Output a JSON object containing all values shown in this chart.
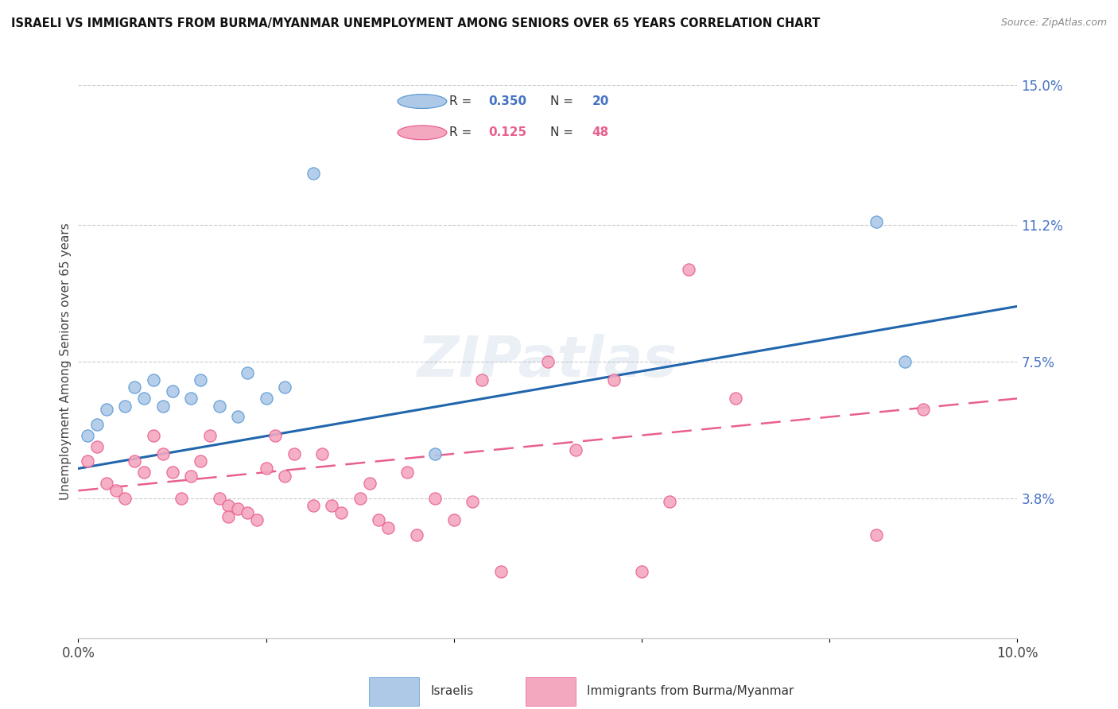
{
  "title": "ISRAELI VS IMMIGRANTS FROM BURMA/MYANMAR UNEMPLOYMENT AMONG SENIORS OVER 65 YEARS CORRELATION CHART",
  "source": "Source: ZipAtlas.com",
  "ylabel": "Unemployment Among Seniors over 65 years",
  "xlim": [
    0.0,
    0.1
  ],
  "ylim": [
    0.0,
    0.15
  ],
  "ytick_right_vals": [
    0.038,
    0.075,
    0.112,
    0.15
  ],
  "ytick_right_labels": [
    "3.8%",
    "7.5%",
    "11.2%",
    "15.0%"
  ],
  "blue_color": "#aec9e8",
  "pink_color": "#f4a8bf",
  "blue_edge_color": "#5b9bd5",
  "pink_edge_color": "#e96090",
  "blue_line_color": "#2166ac",
  "pink_line_color": "#e96090",
  "watermark": "ZIPatlas",
  "israelis_x": [
    0.001,
    0.002,
    0.003,
    0.005,
    0.006,
    0.007,
    0.008,
    0.009,
    0.01,
    0.012,
    0.013,
    0.015,
    0.017,
    0.018,
    0.02,
    0.022,
    0.025,
    0.038,
    0.085,
    0.088
  ],
  "israelis_y": [
    0.055,
    0.058,
    0.062,
    0.063,
    0.068,
    0.065,
    0.07,
    0.063,
    0.067,
    0.065,
    0.07,
    0.063,
    0.06,
    0.072,
    0.065,
    0.068,
    0.126,
    0.05,
    0.113,
    0.075
  ],
  "burma_x": [
    0.001,
    0.002,
    0.003,
    0.004,
    0.005,
    0.006,
    0.007,
    0.008,
    0.009,
    0.01,
    0.011,
    0.012,
    0.013,
    0.014,
    0.015,
    0.016,
    0.016,
    0.017,
    0.018,
    0.019,
    0.02,
    0.021,
    0.022,
    0.023,
    0.025,
    0.026,
    0.027,
    0.028,
    0.03,
    0.031,
    0.032,
    0.033,
    0.035,
    0.036,
    0.038,
    0.04,
    0.042,
    0.043,
    0.045,
    0.05,
    0.053,
    0.057,
    0.06,
    0.063,
    0.065,
    0.07,
    0.085,
    0.09
  ],
  "burma_y": [
    0.048,
    0.052,
    0.042,
    0.04,
    0.038,
    0.048,
    0.045,
    0.055,
    0.05,
    0.045,
    0.038,
    0.044,
    0.048,
    0.055,
    0.038,
    0.036,
    0.033,
    0.035,
    0.034,
    0.032,
    0.046,
    0.055,
    0.044,
    0.05,
    0.036,
    0.05,
    0.036,
    0.034,
    0.038,
    0.042,
    0.032,
    0.03,
    0.045,
    0.028,
    0.038,
    0.032,
    0.037,
    0.07,
    0.018,
    0.075,
    0.051,
    0.07,
    0.018,
    0.037,
    0.1,
    0.065,
    0.028,
    0.062
  ],
  "blue_trend_x": [
    0.0,
    0.1
  ],
  "blue_trend_y_start": 0.046,
  "blue_trend_y_end": 0.09,
  "pink_trend_y_start": 0.04,
  "pink_trend_y_end": 0.065
}
